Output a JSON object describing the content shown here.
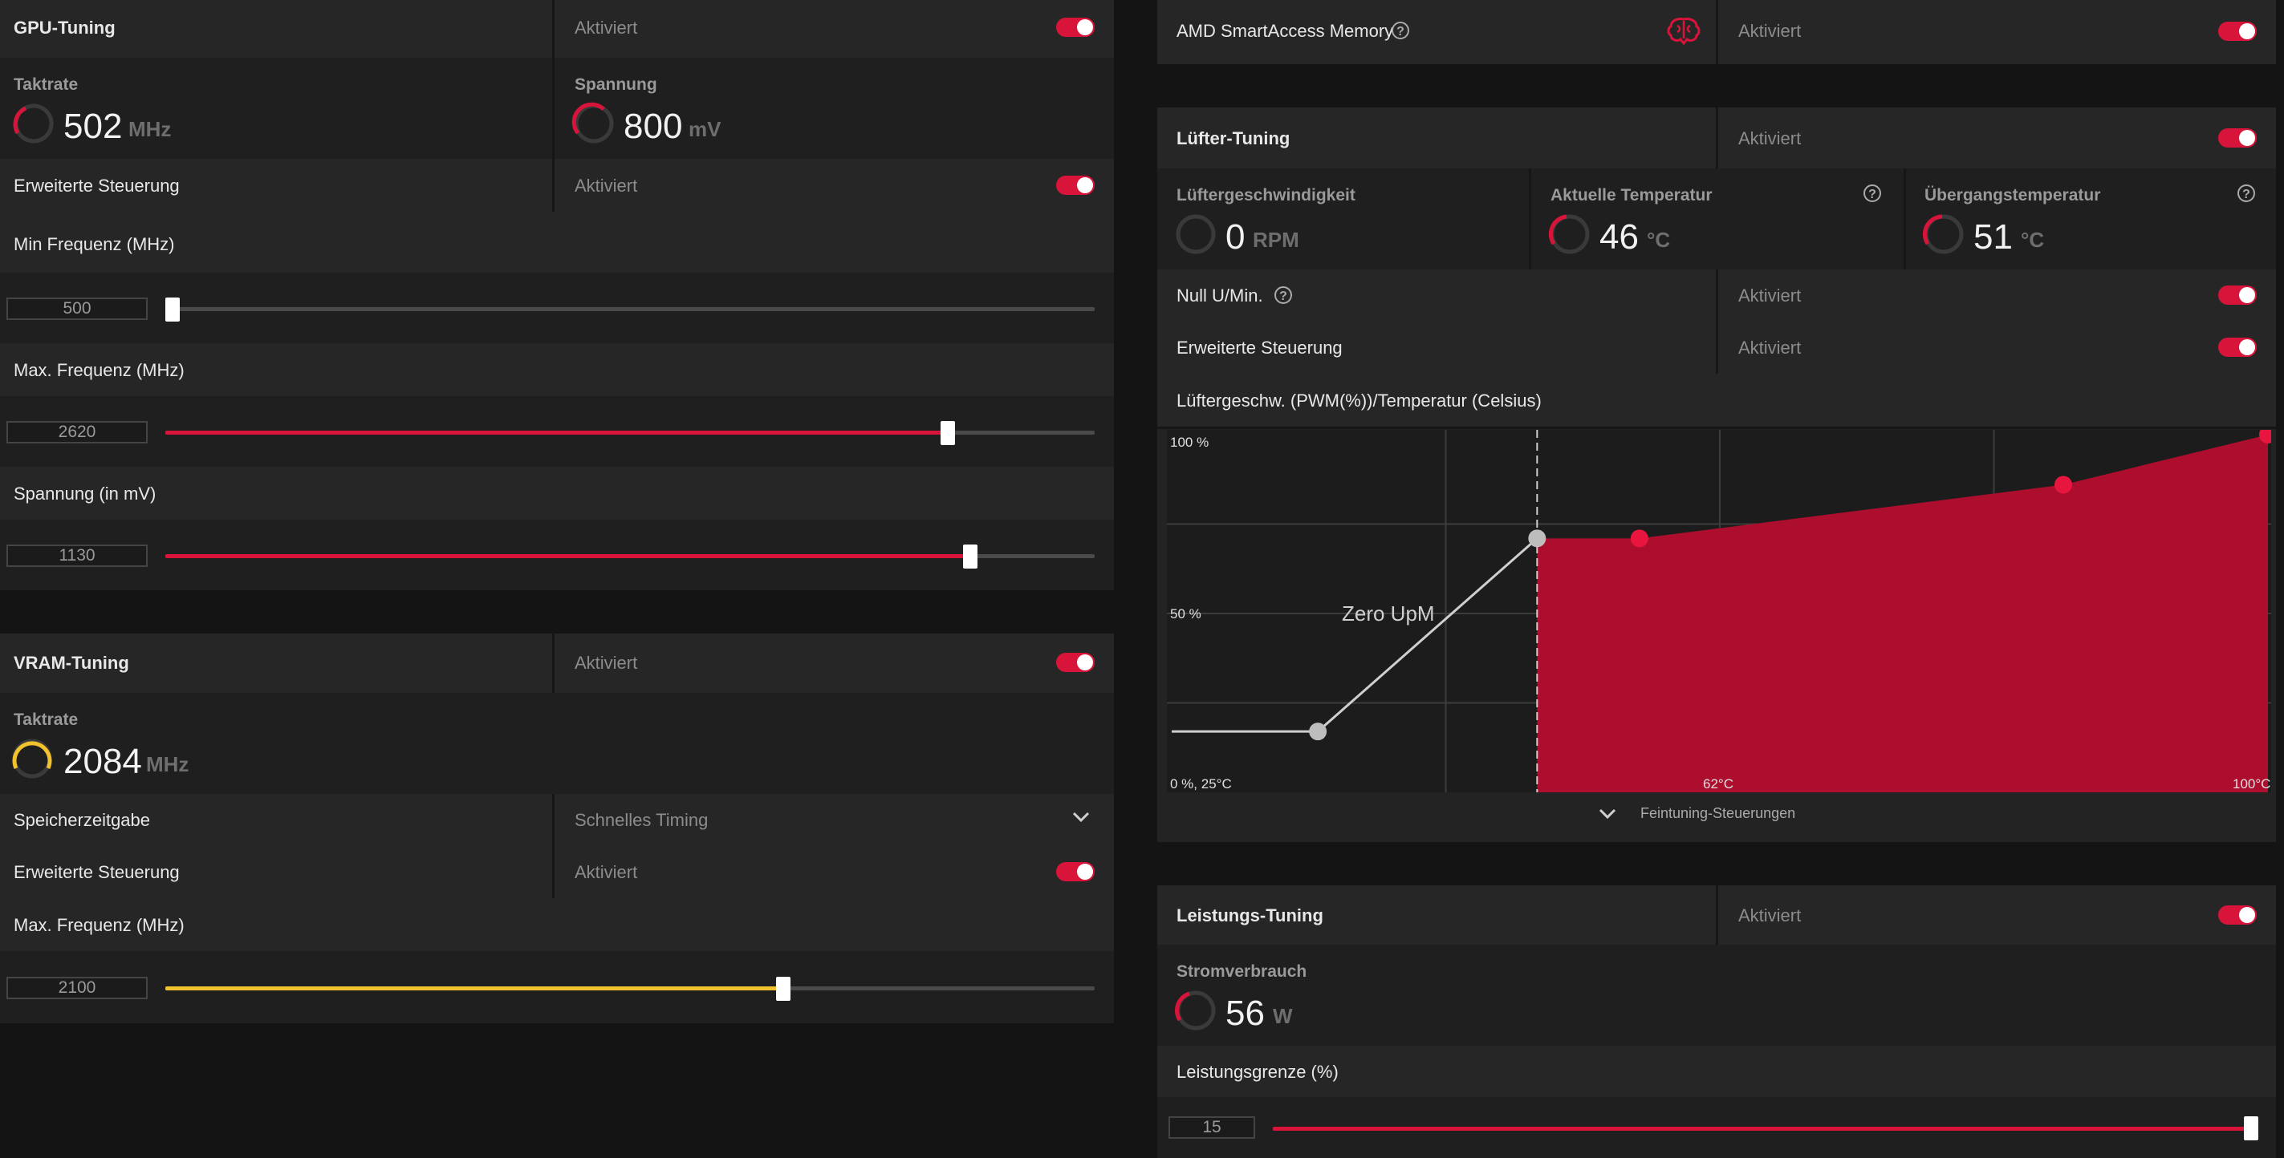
{
  "gpu_tuning": {
    "title": "GPU-Tuning",
    "status": "Aktiviert",
    "clock": {
      "label": "Taktrate",
      "value": "502",
      "unit": "MHz"
    },
    "voltage": {
      "label": "Spannung",
      "value": "800",
      "unit": "mV"
    },
    "advanced": {
      "label": "Erweiterte Steuerung",
      "status": "Aktiviert"
    },
    "min_freq": {
      "label": "Min Frequenz (MHz)",
      "value": "500",
      "level_percent": 0
    },
    "max_freq": {
      "label": "Max. Frequenz (MHz)",
      "value": "2620",
      "level_percent": 84
    },
    "voltage_mv": {
      "label": "Spannung (in mV)",
      "value": "1130",
      "level_percent": 87
    }
  },
  "vram_tuning": {
    "title": "VRAM-Tuning",
    "status": "Aktiviert",
    "clock": {
      "label": "Taktrate",
      "value": "2084",
      "unit": "MHz"
    },
    "memory_timing": {
      "label": "Speicherzeitgabe",
      "selected": "Schnelles Timing"
    },
    "advanced": {
      "label": "Erweiterte Steuerung",
      "status": "Aktiviert"
    },
    "max_freq": {
      "label": "Max. Frequenz (MHz)",
      "value": "2100",
      "level_percent": 66
    }
  },
  "smart_access": {
    "label": "AMD SmartAccess Memory",
    "status": "Aktiviert",
    "help": "?"
  },
  "fan_tuning": {
    "title": "Lüfter-Tuning",
    "status": "Aktiviert",
    "fan_speed": {
      "label": "Lüftergeschwindigkeit",
      "value": "0",
      "unit": "RPM"
    },
    "current_temp": {
      "label": "Aktuelle Temperatur",
      "value": "46",
      "unit": "°C",
      "help": "?"
    },
    "junction_temp": {
      "label": "Übergangstemperatur",
      "value": "51",
      "unit": "°C",
      "help": "?"
    },
    "zero_rpm": {
      "label": "Null U/Min.",
      "status": "Aktiviert",
      "help": "?"
    },
    "advanced": {
      "label": "Erweiterte Steuerung",
      "status": "Aktiviert"
    },
    "curve_title": "Lüftergeschw. (PWM(%))/Temperatur (Celsius)",
    "fine_tuning": "Feintuning-Steuerungen"
  },
  "chart_data": {
    "type": "area",
    "title": "Lüftergeschw. (PWM(%))/Temperatur (Celsius)",
    "ylabels": [
      "100 %",
      "50 %"
    ],
    "xlabels": [
      "0 %, 25°C",
      "62°C",
      "100°C"
    ],
    "annotation": "Zero UpM",
    "xlim": [
      25,
      100
    ],
    "ylim": [
      0,
      100
    ],
    "zero_rpm_line": {
      "x": [
        25,
        35,
        50
      ],
      "y": [
        17,
        17,
        71
      ]
    },
    "fan_curve": {
      "x": [
        50,
        57,
        86,
        100
      ],
      "y": [
        71,
        71,
        86,
        100
      ]
    }
  },
  "power_tuning": {
    "title": "Leistungs-Tuning",
    "status": "Aktiviert",
    "consumption": {
      "label": "Stromverbrauch",
      "value": "56",
      "unit": "W"
    },
    "power_limit": {
      "label": "Leistungsgrenze (%)",
      "value": "15",
      "level_percent": 100
    }
  },
  "colors": {
    "accent": "#d9143a",
    "vram_accent": "#f2c12e",
    "toggle_on": "#d9143a"
  }
}
